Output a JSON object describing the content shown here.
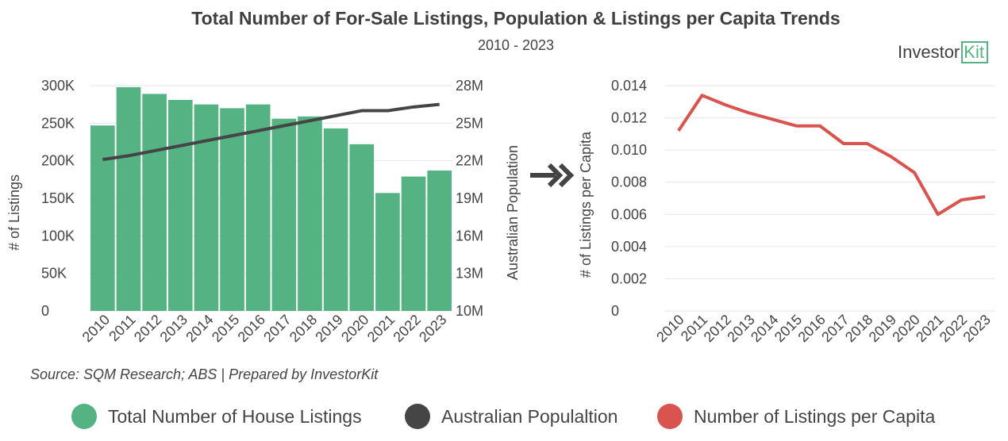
{
  "title": "Total Number of For-Sale Listings, Population & Listings per Capita Trends",
  "subtitle": "2010 - 2023",
  "logo": {
    "text": "Investor",
    "box_text": "Kit"
  },
  "source": "Source: SQM Research; ABS | Prepared by InvestorKit",
  "colors": {
    "listings": "#55b283",
    "population": "#454545",
    "per_capita": "#d9534f",
    "grid": "#e6e6e6"
  },
  "legend": [
    {
      "label": "Total Number of House Listings",
      "color": "#55b283"
    },
    {
      "label": "Australian Populaltion",
      "color": "#454545"
    },
    {
      "label": "Number of Listings per Capita",
      "color": "#d9534f"
    }
  ],
  "chart_data": [
    {
      "type": "bar",
      "categories": [
        "2010",
        "2011",
        "2012",
        "2013",
        "2014",
        "2015",
        "2016",
        "2017",
        "2018",
        "2019",
        "2020",
        "2021",
        "2022",
        "2023"
      ],
      "series": [
        {
          "name": "Total Number of House Listings",
          "axis": "left",
          "values": [
            247000,
            298000,
            289000,
            281000,
            275000,
            270000,
            275000,
            256000,
            259000,
            243000,
            222000,
            157000,
            179000,
            187000
          ]
        },
        {
          "name": "Australian Populaltion",
          "axis": "right",
          "type": "line",
          "values": [
            22100000,
            22400000,
            22800000,
            23200000,
            23600000,
            24000000,
            24400000,
            24800000,
            25200000,
            25600000,
            26000000,
            26000000,
            26300000,
            26500000
          ]
        }
      ],
      "ylabel": "# of Listings",
      "ylabel_right": "Australian Population",
      "ylim": [
        0,
        300000
      ],
      "ylim_right": [
        10000000,
        28000000
      ],
      "yticks": [
        "0",
        "50K",
        "100K",
        "150K",
        "200K",
        "250K",
        "300K"
      ],
      "yticks_right": [
        "10M",
        "13M",
        "16M",
        "19M",
        "22M",
        "25M",
        "28M"
      ],
      "grid": true
    },
    {
      "type": "line",
      "categories": [
        "2010",
        "2011",
        "2012",
        "2013",
        "2014",
        "2015",
        "2016",
        "2017",
        "2018",
        "2019",
        "2020",
        "2021",
        "2022",
        "2023"
      ],
      "series": [
        {
          "name": "Number of Listings per Capita",
          "values": [
            0.0112,
            0.0134,
            0.0128,
            0.0123,
            0.0119,
            0.0115,
            0.0115,
            0.0104,
            0.0104,
            0.0096,
            0.0086,
            0.006,
            0.0069,
            0.0071
          ]
        }
      ],
      "ylabel": "# of Listings per Capita",
      "ylim": [
        0,
        0.014
      ],
      "yticks": [
        "0",
        "0.002",
        "0.004",
        "0.006",
        "0.008",
        "0.010",
        "0.012",
        "0.014"
      ],
      "grid": true
    }
  ]
}
